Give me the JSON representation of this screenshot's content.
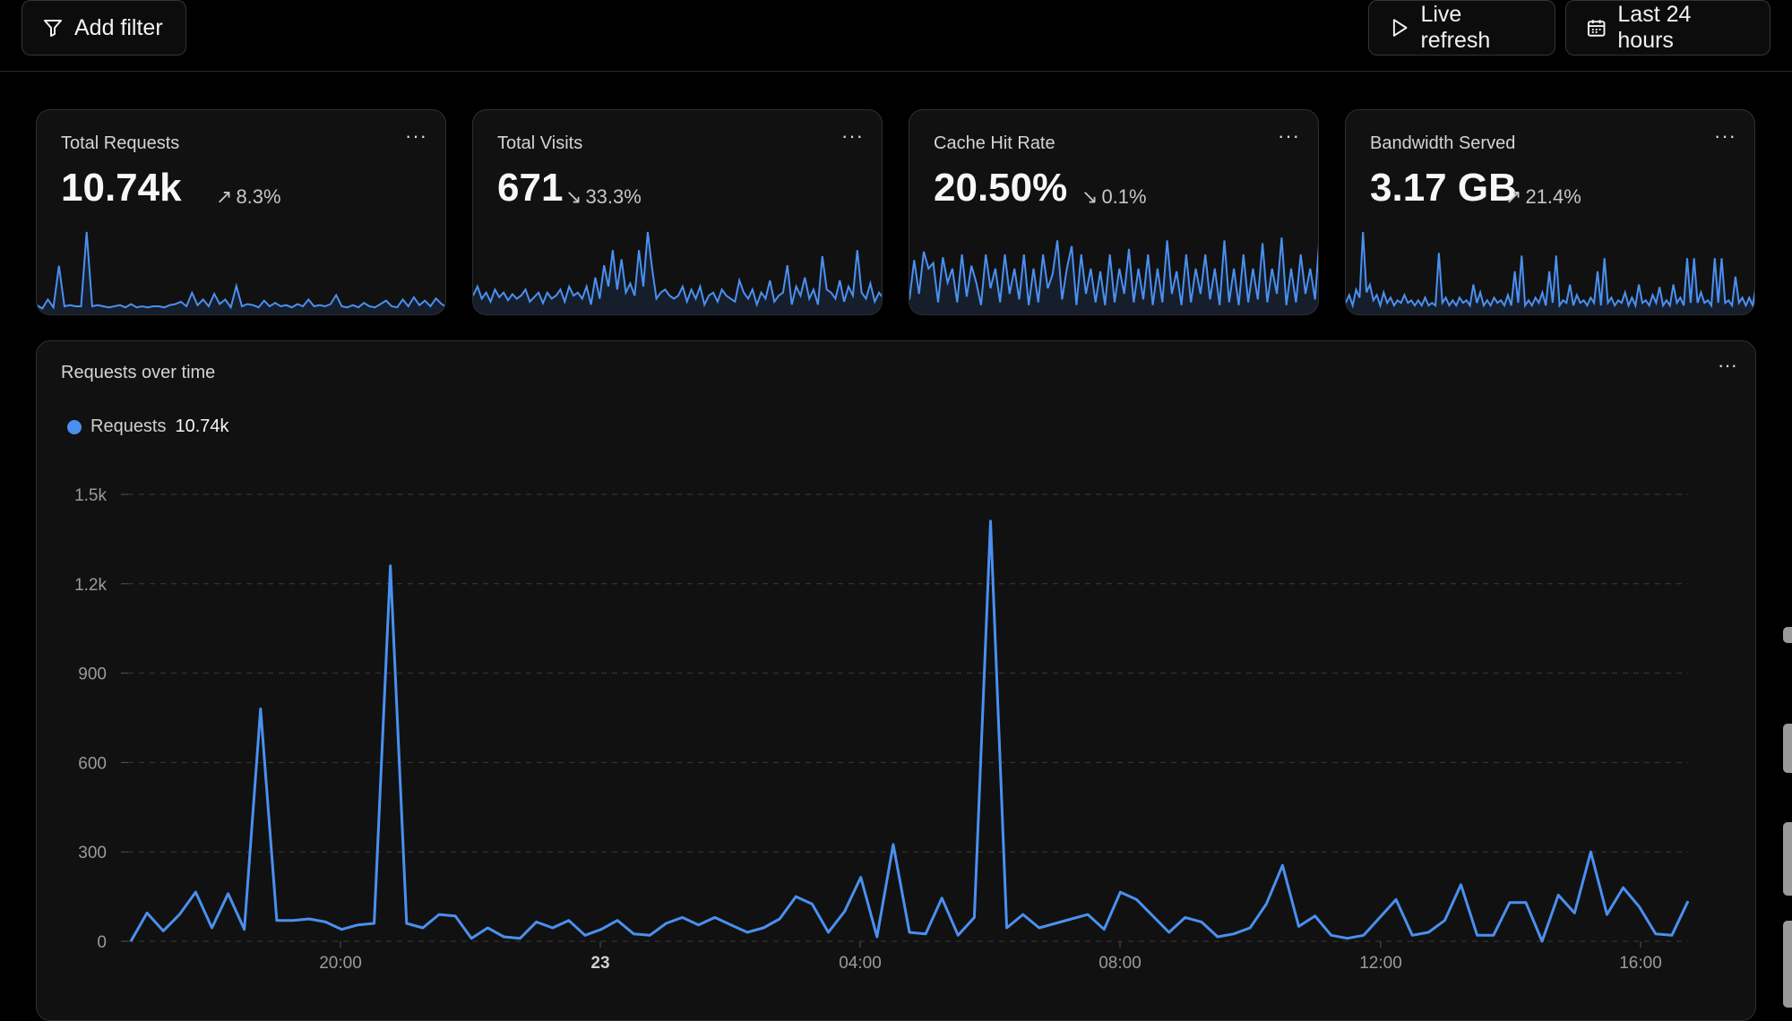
{
  "toolbar": {
    "add_filter": "Add filter",
    "live_refresh": "Live refresh",
    "time_range": "Last 24 hours"
  },
  "cards": [
    {
      "title": "Total Requests",
      "value": "10.74k",
      "change": "8.3%",
      "trend": "up",
      "spark": [
        5,
        2,
        10,
        3,
        40,
        4,
        5,
        4,
        4,
        70,
        4,
        5,
        4,
        3,
        4,
        5,
        3,
        6,
        3,
        4,
        3,
        4,
        4,
        3,
        5,
        6,
        8,
        4,
        16,
        5,
        10,
        4,
        15,
        6,
        10,
        3,
        22,
        4,
        6,
        5,
        3,
        9,
        4,
        7,
        4,
        5,
        3,
        6,
        4,
        10,
        4,
        5,
        4,
        6,
        14,
        4,
        3,
        5,
        3,
        7,
        4,
        3,
        6,
        9,
        4,
        3,
        10,
        4,
        12,
        5,
        9,
        4,
        11,
        6,
        3
      ]
    },
    {
      "title": "Total Visits",
      "value": "671",
      "change": "33.3%",
      "trend": "down",
      "spark": [
        10,
        16,
        8,
        12,
        6,
        14,
        9,
        12,
        7,
        11,
        8,
        10,
        14,
        6,
        9,
        12,
        5,
        12,
        8,
        10,
        14,
        6,
        16,
        10,
        12,
        8,
        16,
        4,
        22,
        8,
        30,
        16,
        40,
        14,
        34,
        12,
        18,
        10,
        40,
        16,
        52,
        28,
        8,
        12,
        14,
        10,
        8,
        10,
        16,
        6,
        14,
        8,
        16,
        4,
        10,
        12,
        6,
        14,
        10,
        8,
        6,
        20,
        12,
        8,
        14,
        4,
        12,
        8,
        20,
        6,
        10,
        12,
        30,
        4,
        16,
        10,
        22,
        8,
        14,
        4,
        36,
        14,
        12,
        8,
        20,
        6,
        16,
        10,
        40,
        12,
        8,
        18,
        6,
        12,
        8
      ]
    },
    {
      "title": "Cache Hit Rate",
      "value": "20.50%",
      "change": "0.1%",
      "trend": "down",
      "spark": [
        8,
        36,
        12,
        42,
        30,
        34,
        6,
        38,
        20,
        30,
        6,
        40,
        10,
        32,
        20,
        4,
        40,
        16,
        30,
        6,
        40,
        12,
        30,
        8,
        40,
        4,
        30,
        6,
        40,
        16,
        26,
        50,
        8,
        30,
        46,
        4,
        40,
        12,
        30,
        6,
        28,
        4,
        40,
        6,
        30,
        12,
        44,
        6,
        30,
        8,
        40,
        4,
        30,
        6,
        50,
        12,
        28,
        4,
        40,
        6,
        30,
        12,
        40,
        8,
        30,
        4,
        50,
        6,
        30,
        4,
        40,
        6,
        30,
        8,
        48,
        6,
        30,
        12,
        52,
        4,
        30,
        6,
        40,
        12,
        30,
        8,
        56
      ]
    },
    {
      "title": "Bandwidth Served",
      "value": "3.17 GB",
      "change": "21.4%",
      "trend": "up",
      "spark": [
        6,
        12,
        4,
        16,
        10,
        60,
        14,
        20,
        8,
        12,
        4,
        14,
        6,
        10,
        4,
        8,
        6,
        12,
        6,
        8,
        4,
        8,
        4,
        10,
        4,
        6,
        4,
        44,
        6,
        10,
        4,
        8,
        4,
        10,
        6,
        8,
        4,
        20,
        6,
        14,
        4,
        8,
        4,
        10,
        6,
        8,
        4,
        12,
        4,
        30,
        6,
        42,
        4,
        8,
        4,
        10,
        6,
        14,
        4,
        30,
        6,
        42,
        4,
        8,
        6,
        20,
        4,
        12,
        6,
        8,
        4,
        10,
        6,
        30,
        4,
        40,
        6,
        10,
        4,
        8,
        6,
        14,
        4,
        10,
        4,
        20,
        6,
        8,
        4,
        12,
        6,
        18,
        4,
        8,
        4,
        20,
        6,
        10,
        4,
        40,
        6,
        40,
        6,
        14,
        6,
        8,
        4,
        40,
        6,
        40,
        6,
        8,
        4,
        26,
        6,
        10,
        4,
        10,
        4,
        20
      ]
    }
  ],
  "main": {
    "title": "Requests over time",
    "legend": {
      "label": "Requests",
      "value": "10.74k",
      "color": "#4a90f0"
    },
    "menu_icon": "more-icon"
  },
  "chart_data": {
    "type": "line",
    "title": "Requests over time",
    "xlabel": "",
    "ylabel": "",
    "ylim": [
      0,
      1500
    ],
    "yticks": [
      "0",
      "300",
      "600",
      "900",
      "1.2k",
      "1.5k"
    ],
    "xticks": [
      "20:00",
      "23",
      "04:00",
      "08:00",
      "12:00",
      "16:00"
    ],
    "series": [
      {
        "name": "Requests",
        "values": [
          0,
          95,
          35,
          90,
          165,
          45,
          160,
          40,
          780,
          70,
          70,
          75,
          65,
          40,
          55,
          60,
          1260,
          60,
          45,
          90,
          85,
          10,
          45,
          15,
          10,
          65,
          45,
          70,
          20,
          40,
          70,
          25,
          20,
          60,
          80,
          55,
          80,
          55,
          30,
          45,
          75,
          150,
          125,
          30,
          100,
          215,
          15,
          325,
          30,
          25,
          145,
          20,
          80,
          1410,
          45,
          90,
          45,
          60,
          75,
          90,
          40,
          165,
          140,
          85,
          30,
          80,
          65,
          15,
          25,
          45,
          125,
          255,
          50,
          85,
          20,
          10,
          20,
          80,
          140,
          20,
          30,
          70,
          190,
          20,
          20,
          130,
          130,
          0,
          155,
          95,
          300,
          90,
          180,
          115,
          25,
          20,
          135
        ]
      }
    ]
  }
}
